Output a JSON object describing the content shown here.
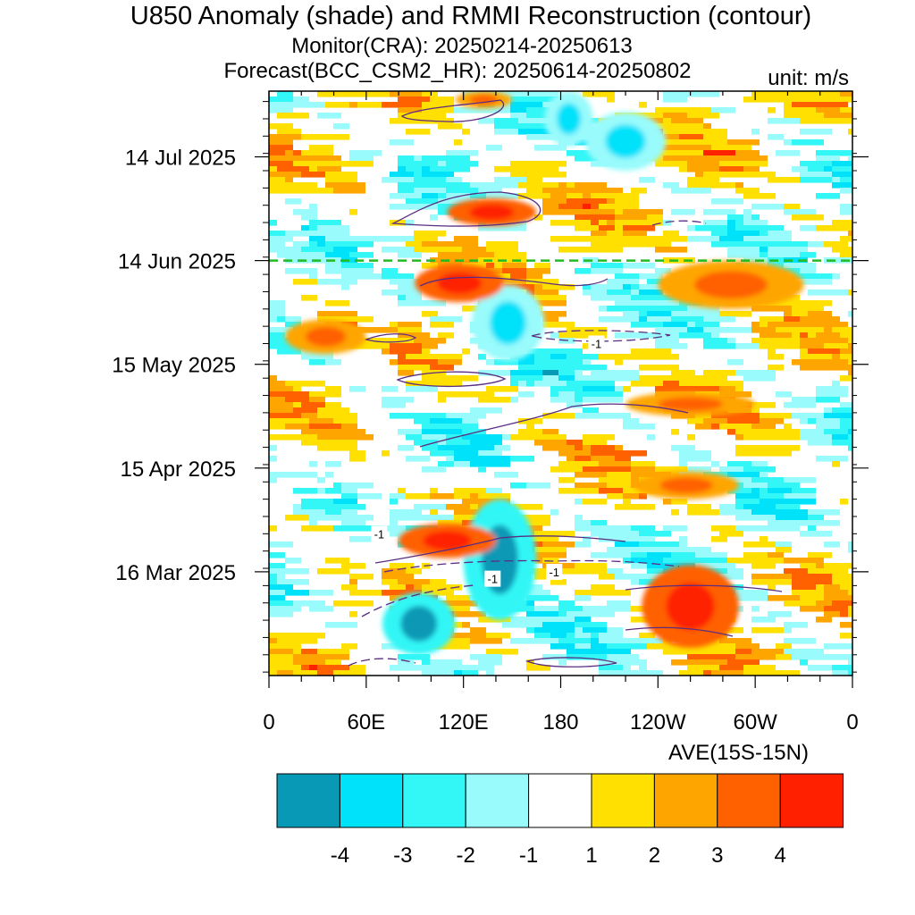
{
  "header": {
    "title": "U850 Anomaly (shade) and RMMI Reconstruction (contour)",
    "monitor": "Monitor(CRA): 20250214-20250613",
    "forecast": "Forecast(BCC_CSM2_HR): 20250614-20250802",
    "unit": "unit: m/s",
    "region": "AVE(15S-15N)"
  },
  "chart_data": {
    "type": "heatmap",
    "x_axis": {
      "ticks": [
        {
          "lon": 0,
          "label": "0"
        },
        {
          "lon": 60,
          "label": "60E"
        },
        {
          "lon": 120,
          "label": "120E"
        },
        {
          "lon": 180,
          "label": "180"
        },
        {
          "lon": 240,
          "label": "120W"
        },
        {
          "lon": 300,
          "label": "60W"
        },
        {
          "lon": 360,
          "label": "0"
        }
      ],
      "range": [
        0,
        360
      ]
    },
    "y_axis": {
      "range": [
        "2025-02-14",
        "2025-08-02"
      ],
      "ticks": [
        {
          "date": "2025-03-16",
          "label": "16 Mar 2025"
        },
        {
          "date": "2025-04-15",
          "label": "15 Apr 2025"
        },
        {
          "date": "2025-05-15",
          "label": "15 May 2025"
        },
        {
          "date": "2025-06-14",
          "label": "14 Jun 2025"
        },
        {
          "date": "2025-07-14",
          "label": "14 Jul 2025"
        }
      ]
    },
    "forecast_start_line": {
      "date": "2025-06-14",
      "color": "#22bb22",
      "style": "dashed"
    },
    "contour_labels": [
      {
        "text": "-1",
        "lon": 68,
        "date": "2025-03-27"
      },
      {
        "text": "-1",
        "lon": 138,
        "date": "2025-03-14"
      },
      {
        "text": "-1",
        "lon": 176,
        "date": "2025-03-16"
      },
      {
        "text": "-1",
        "lon": 202,
        "date": "2025-05-21"
      }
    ],
    "colorbar": {
      "levels": [
        "-4",
        "-3",
        "-2",
        "-1",
        "1",
        "2",
        "3",
        "4"
      ],
      "colors": [
        "#0799b6",
        "#00e1fa",
        "#33f6f6",
        "#99fbfb",
        "#ffffff",
        "#ffe000",
        "#ffa500",
        "#ff6000",
        "#ff2000"
      ]
    },
    "shaded_regions": [
      {
        "lon": [
          170,
          200
        ],
        "dates": [
          "2025-07-17",
          "2025-08-02"
        ],
        "value": -2
      },
      {
        "lon": [
          195,
          245
        ],
        "dates": [
          "2025-07-10",
          "2025-07-27"
        ],
        "value": -2
      },
      {
        "lon": [
          120,
          165
        ],
        "dates": [
          "2025-03-02",
          "2025-04-06"
        ],
        "value": -3
      },
      {
        "lon": [
          70,
          115
        ],
        "dates": [
          "2025-02-20",
          "2025-03-10"
        ],
        "value": -3
      },
      {
        "lon": [
          125,
          170
        ],
        "dates": [
          "2025-05-16",
          "2025-06-07"
        ],
        "value": -2
      },
      {
        "lon": [
          230,
          290
        ],
        "dates": [
          "2025-02-22",
          "2025-03-18"
        ],
        "value": 3
      },
      {
        "lon": [
          80,
          140
        ],
        "dates": [
          "2025-03-20",
          "2025-03-30"
        ],
        "value": 3
      },
      {
        "lon": [
          225,
          290
        ],
        "dates": [
          "2025-04-06",
          "2025-04-14"
        ],
        "value": 2
      },
      {
        "lon": [
          240,
          330
        ],
        "dates": [
          "2025-05-31",
          "2025-06-14"
        ],
        "value": 2
      },
      {
        "lon": [
          90,
          145
        ],
        "dates": [
          "2025-06-02",
          "2025-06-13"
        ],
        "value": 3
      },
      {
        "lon": [
          110,
          165
        ],
        "dates": [
          "2025-06-24",
          "2025-07-02"
        ],
        "value": 3
      },
      {
        "lon": [
          115,
          150
        ],
        "dates": [
          "2025-07-28",
          "2025-08-02"
        ],
        "value": 2
      },
      {
        "lon": [
          10,
          60
        ],
        "dates": [
          "2025-05-18",
          "2025-05-28"
        ],
        "value": 2
      },
      {
        "lon": [
          220,
          300
        ],
        "dates": [
          "2025-04-30",
          "2025-05-07"
        ],
        "value": 2
      }
    ]
  }
}
